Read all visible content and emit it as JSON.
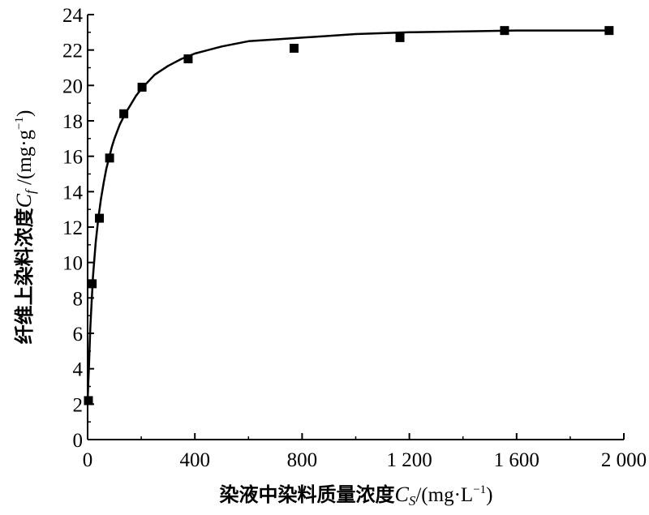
{
  "chart_data": {
    "type": "scatter",
    "title": "",
    "xlabel": "染液中染料质量浓度C_S/(mg·L⁻¹)",
    "ylabel": "纤维上染料浓度C_f /(mg·g⁻¹)",
    "xlabel_parts": {
      "prefix": "染液中染料质量浓度",
      "symbol": "C",
      "sub": "S",
      "unit": "/(mg·L",
      "sup": "−1",
      "close": ")"
    },
    "ylabel_parts": {
      "prefix": "纤维上染料浓度",
      "symbol": "C",
      "sub": "f",
      "unit": " /(mg·g",
      "sup": "−1",
      "close": ")"
    },
    "xlim": [
      0,
      2000
    ],
    "ylim": [
      0,
      24
    ],
    "xticks": [
      0,
      400,
      800,
      1200,
      1600,
      2000
    ],
    "xtick_labels": [
      "0",
      "400",
      "800",
      "1 200",
      "1 600",
      "2 000"
    ],
    "yticks": [
      0,
      2,
      4,
      6,
      8,
      10,
      12,
      14,
      16,
      18,
      20,
      22,
      24
    ],
    "ytick_labels": [
      "0",
      "2",
      "4",
      "6",
      "8",
      "10",
      "12",
      "14",
      "16",
      "18",
      "20",
      "22",
      "24"
    ],
    "grid": false,
    "legend": "none",
    "series": [
      {
        "marker": "square",
        "color": "#000000",
        "x": [
          3,
          17,
          44,
          82,
          135,
          203,
          375,
          770,
          1165,
          1555,
          1945
        ],
        "y": [
          2.2,
          8.8,
          12.5,
          15.9,
          18.4,
          19.9,
          21.5,
          22.1,
          22.7,
          23.1,
          23.1
        ]
      }
    ],
    "fit_curve": {
      "color": "#000000",
      "x": [
        0,
        5,
        10,
        20,
        30,
        40,
        50,
        60,
        70,
        80,
        90,
        100,
        120,
        140,
        160,
        180,
        200,
        250,
        300,
        350,
        400,
        500,
        600,
        700,
        800,
        900,
        1000,
        1200,
        1400,
        1600,
        1800,
        1950
      ],
      "y": [
        2.2,
        4.2,
        6.3,
        9.2,
        11.1,
        12.5,
        13.6,
        14.5,
        15.3,
        15.9,
        16.5,
        17.0,
        17.8,
        18.4,
        18.9,
        19.4,
        19.8,
        20.6,
        21.1,
        21.5,
        21.8,
        22.2,
        22.5,
        22.6,
        22.7,
        22.8,
        22.9,
        23.0,
        23.05,
        23.1,
        23.1,
        23.1
      ]
    }
  }
}
